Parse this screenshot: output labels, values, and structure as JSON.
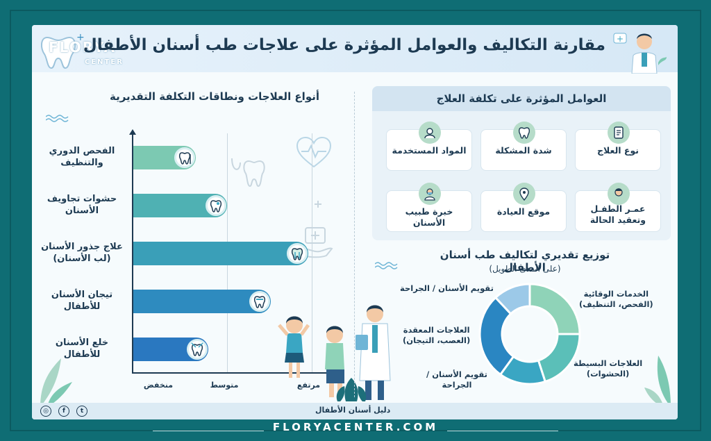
{
  "header": {
    "title": "مقارنة التكاليف والعوامل المؤثرة على علاجات طب أسنان الأطفال",
    "logo": "FLORYA",
    "logo_sub": "CENTER"
  },
  "treatments_chart": {
    "title": "أنواع العلاجات ونطاقات التكلفة التقديرية",
    "x_ticks": [
      "منخفض",
      "متوسط",
      "مرتفع"
    ]
  },
  "chart_data": {
    "type": "bar",
    "orientation": "horizontal",
    "title": "أنواع العلاجات ونطاقات التكلفة التقديرية",
    "categories": [
      "الفحص الدوري والتنظيف",
      "حشوات تجاويف الأسنان",
      "علاج جذور الأسنان (لب الأسنان)",
      "تيجان الأسنان للأطفال",
      "خلع الأسنان للأطفال"
    ],
    "category_lines": [
      [
        "الفحص الدوري",
        "والتنظيف"
      ],
      [
        "حشوات تجاويف",
        "الأسنان"
      ],
      [
        "علاج جذور الأسنان",
        "(لب الأسنان)"
      ],
      [
        "تيجان الأسنان",
        "للأطفال"
      ],
      [
        "خلع الأسنان",
        "للأطفال"
      ]
    ],
    "values": [
      1.0,
      1.5,
      2.8,
      2.2,
      1.2
    ],
    "xlim": [
      0,
      3
    ],
    "x_ticks": [
      "منخفض",
      "متوسط",
      "مرتفع"
    ],
    "colors": [
      "#7cc9b2",
      "#4fb1b3",
      "#3a9fb8",
      "#2e8bbf",
      "#2a78c0"
    ],
    "icons": [
      "tooth-mirror-icon",
      "tooth-filling-icon",
      "tooth-root-icon",
      "tooth-crown-icon",
      "tooth-extraction-icon"
    ]
  },
  "factors": {
    "title": "العوامل المؤثرة على تكلفة العلاج",
    "items": [
      {
        "label": "نوع العلاج",
        "icon": "clipboard-icon"
      },
      {
        "label": "شدة المشكلة",
        "icon": "tooth-icon"
      },
      {
        "label": "المواد المستخدمة",
        "icon": "materials-icon"
      },
      {
        "label": "عمـر الطفـل",
        "label2": "وتعقيد الحالة",
        "icon": "child-icon"
      },
      {
        "label": "موقع العيادة",
        "icon": "location-pin-icon"
      },
      {
        "label": "خبرة طبيب الأسنان",
        "icon": "dentist-icon"
      }
    ]
  },
  "donut": {
    "title": "توزيع تقديري لتكاليف طب أسنان الأطفال",
    "subtitle": "(على المدى الطويل)",
    "segments": [
      {
        "label": "الخدمات الوقائية",
        "sub": "(الفحص، التنظيف)",
        "value": 25,
        "color": "#8fd3b8"
      },
      {
        "label": "العلاجات البسيطة",
        "sub": "(الحشوات)",
        "value": 20,
        "color": "#5bbfb8"
      },
      {
        "label": "تقويم الأسنان /",
        "sub": "الجراحة",
        "value": 15,
        "color": "#3aa6c3"
      },
      {
        "label": "العلاجات المعقدة",
        "sub": "(العصب، التيجان)",
        "value": 28,
        "color": "#2a86c2"
      },
      {
        "label": "تقويم الأسنان / الجراحة",
        "sub": "",
        "value": 12,
        "color": "#9cc9e8"
      }
    ]
  },
  "footer": {
    "small_text": "دليل أسنان الأطفال",
    "url": "FLORYACENTER.COM"
  }
}
